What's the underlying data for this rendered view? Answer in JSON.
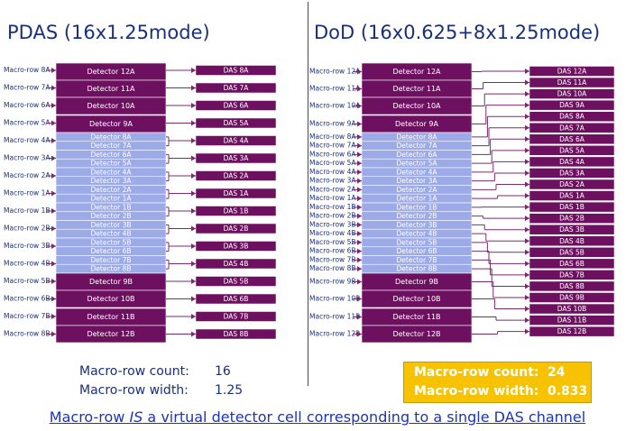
{
  "left_panel": {
    "title": "PDAS (16x1.25mode)",
    "macro_rows": [
      "Macro-row 8A",
      "Macro-row 7A",
      "Macro-row 6A",
      "Macro-row 5A",
      "Macro-row 4A",
      "Macro-row 3A",
      "Macro-row 2A",
      "Macro-row 1A",
      "Macro-row 1B",
      "Macro-row 2B",
      "Macro-row 3B",
      "Macro-row 4B",
      "Macro-row 5B",
      "Macro-row 6B",
      "Macro-row 7B",
      "Macro-row 8B"
    ],
    "detectors_large_top": [
      "Detector 12A",
      "Detector 11A",
      "Detector 10A",
      "Detector 9A"
    ],
    "detectors_small": [
      "Detector 8A",
      "Detector 7A",
      "Detector 6A",
      "Detector 5A",
      "Detector 4A",
      "Detector 3A",
      "Detector 2A",
      "Detector 1A",
      "Detector 1B",
      "Detector 2B",
      "Detector 3B",
      "Detector 4B",
      "Detector 5B",
      "Detector 6B",
      "Detector 7B",
      "Detector 8B"
    ],
    "detectors_large_bottom": [
      "Detector 9B",
      "Detector 10B",
      "Detector 11B",
      "Detector 12B"
    ],
    "das_channels": [
      "DAS 8A",
      "DAS 7A",
      "DAS 6A",
      "DAS 5A",
      "DAS 4A",
      "DAS 3A",
      "DAS 2A",
      "DAS 1A",
      "DAS 1B",
      "DAS 2B",
      "DAS 3B",
      "DAS 4B",
      "DAS 5B",
      "DAS 6B",
      "DAS 7B",
      "DAS 8B"
    ],
    "stats": {
      "count_label": "Macro-row count:",
      "count_value": "16",
      "width_label": "Macro-row width:",
      "width_value": "1.25"
    }
  },
  "right_panel": {
    "title": "DoD (16x0.625+8x1.25mode)",
    "macro_rows": [
      "Macro-row 12A",
      "Macro-row 11A",
      "Macro-row 10A",
      "Macro-row 9A",
      "Macro-row 8A",
      "Macro-row 7A",
      "Macro-row 6A",
      "Macro-row 5A",
      "Macro-row 4A",
      "Macro-row 3A",
      "Macro-row 2A",
      "Macro-row 1A",
      "Macro-row 1B",
      "Macro-row 2B",
      "Macro-row 3B",
      "Macro-row 4B",
      "Macro-row 5B",
      "Macro-row 6B",
      "Macro-row 7B",
      "Macro-row 8B",
      "Macro-row 9B",
      "Macro-row 10B",
      "Macro-row 11B",
      "Macro-row 12B"
    ],
    "detectors_large_top": [
      "Detector 12A",
      "Detector 11A",
      "Detector 10A",
      "Detector 9A"
    ],
    "detectors_small": [
      "Detector 8A",
      "Detector 7A",
      "Detector 6A",
      "Detector 5A",
      "Detector 4A",
      "Detector 3A",
      "Detector 2A",
      "Detector 1A",
      "Detector 1B",
      "Detector 2B",
      "Detector 3B",
      "Detector 4B",
      "Detector 5B",
      "Detector 6B",
      "Detector 7B",
      "Detector 8B"
    ],
    "detectors_large_bottom": [
      "Detector 9B",
      "Detector 10B",
      "Detector 11B",
      "Detector 12B"
    ],
    "das_channels": [
      "DAS 12A",
      "DAS 11A",
      "DAS 10A",
      "DAS 9A",
      "DAS 8A",
      "DAS 7A",
      "DAS 6A",
      "DAS 5A",
      "DAS 4A",
      "DAS 3A",
      "DAS 2A",
      "DAS 1A",
      "DAS 1B",
      "DAS 2B",
      "DAS 3B",
      "DAS 4B",
      "DAS 5B",
      "DAS 6B",
      "DAS 7B",
      "DAS 8B",
      "DAS 9B",
      "DAS 10B",
      "DAS 11B",
      "DAS 12B"
    ],
    "stats": {
      "count_label": "Macro-row count:",
      "count_value": "24",
      "width_label": "Macro-row width:",
      "width_value": "0.833"
    }
  },
  "footer": {
    "part1": "Macro-row ",
    "emph": "IS",
    "part2": " a virtual detector cell corresponding to a single DAS channel"
  },
  "colors": {
    "large_detector": "#6e1060",
    "small_detector": "#9daae8",
    "das_box": "#6e1060",
    "line": "#7a2a6e",
    "title_text": "#1a2f7a",
    "highlight": "#f7c200",
    "footer_text": "#1a35b8"
  }
}
